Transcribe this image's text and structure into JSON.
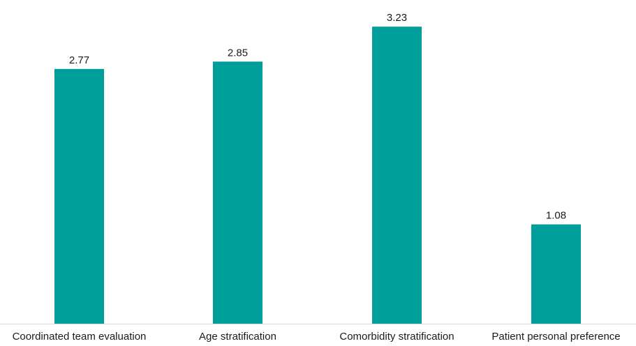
{
  "chart_data": {
    "type": "bar",
    "categories": [
      "Coordinated team evaluation",
      "Age stratification",
      "Comorbidity stratification",
      "Patient personal preference"
    ],
    "values": [
      2.77,
      2.85,
      3.23,
      1.08
    ],
    "data_labels": [
      "2.77",
      "2.85",
      "3.23",
      "1.08"
    ],
    "ylim": [
      0,
      3.52
    ],
    "grid": false,
    "legend": "none",
    "colors": {
      "bar": "#009e9a",
      "axis": "#d9d9d9",
      "text": "#1a1a1a"
    }
  }
}
